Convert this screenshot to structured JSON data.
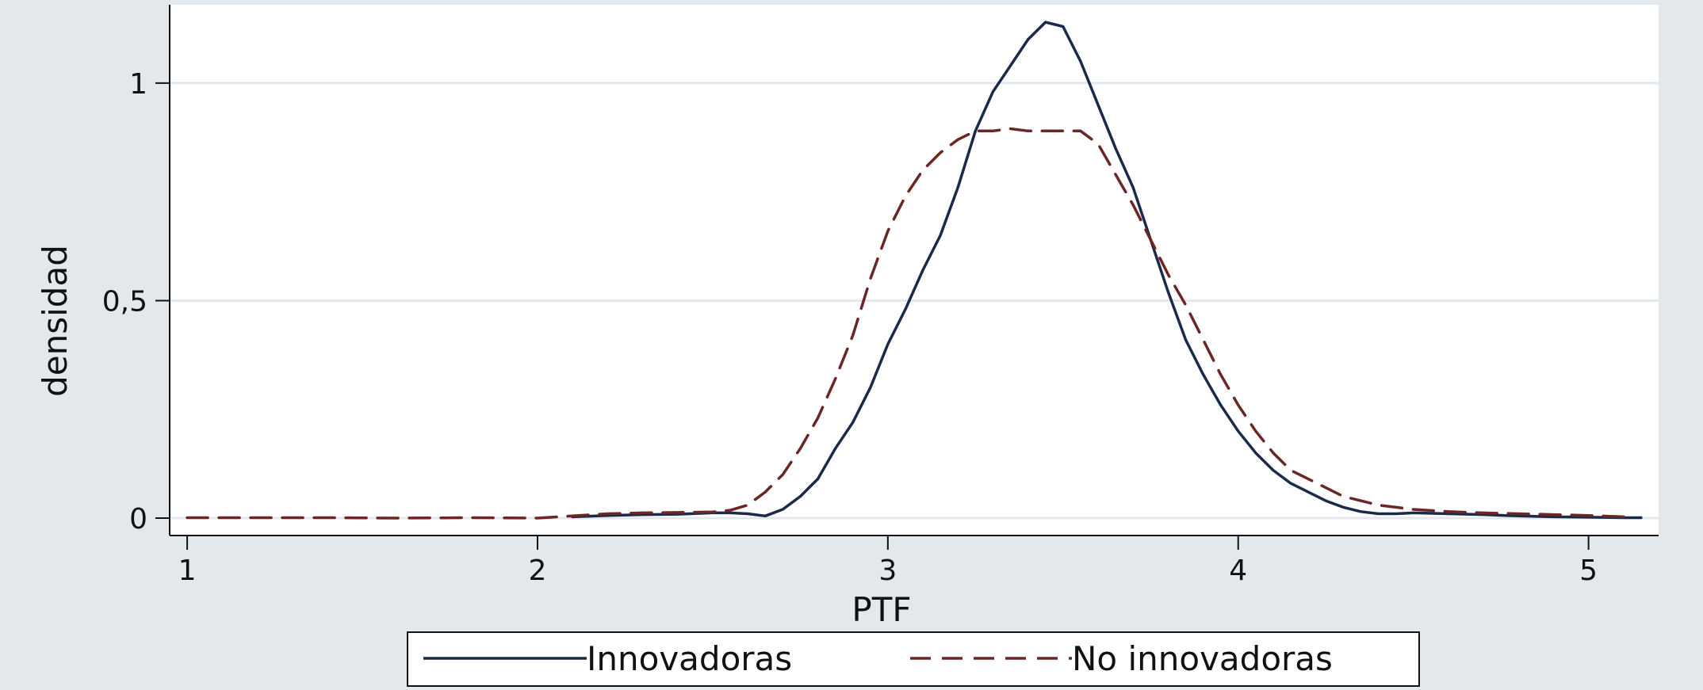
{
  "chart_data": {
    "type": "line",
    "xlabel": "PTF",
    "ylabel": "densidad",
    "xlim": [
      0.95,
      5.2
    ],
    "ylim": [
      -0.04,
      1.18
    ],
    "xticks": [
      1,
      2,
      3,
      4,
      5
    ],
    "xtick_labels": [
      "1",
      "2",
      "3",
      "4",
      "5"
    ],
    "yticks": [
      0,
      0.5,
      1
    ],
    "ytick_labels": [
      "0",
      "0,5",
      "1"
    ],
    "grid": true,
    "legend_position": "bottom",
    "colors": {
      "innovadoras": "#1a2a48",
      "no_innovadoras": "#6b2626",
      "plot_background": "#ffffff",
      "outer_background": "#e3e8ec",
      "grid": "#e3e8ec"
    },
    "series": [
      {
        "name": "Innovadoras",
        "style": "solid",
        "x": [
          2.1,
          2.2,
          2.3,
          2.4,
          2.5,
          2.55,
          2.6,
          2.65,
          2.7,
          2.75,
          2.8,
          2.85,
          2.9,
          2.95,
          3.0,
          3.05,
          3.1,
          3.15,
          3.2,
          3.25,
          3.3,
          3.35,
          3.4,
          3.45,
          3.5,
          3.55,
          3.6,
          3.65,
          3.7,
          3.75,
          3.8,
          3.85,
          3.9,
          3.95,
          4.0,
          4.05,
          4.1,
          4.15,
          4.2,
          4.25,
          4.3,
          4.35,
          4.4,
          4.45,
          4.5,
          4.6,
          4.7,
          4.8,
          4.9,
          5.0,
          5.1,
          5.15
        ],
        "y": [
          0.003,
          0.006,
          0.008,
          0.009,
          0.012,
          0.012,
          0.01,
          0.005,
          0.02,
          0.05,
          0.09,
          0.16,
          0.22,
          0.3,
          0.4,
          0.48,
          0.57,
          0.65,
          0.76,
          0.89,
          0.98,
          1.04,
          1.1,
          1.14,
          1.13,
          1.05,
          0.95,
          0.85,
          0.76,
          0.64,
          0.52,
          0.41,
          0.33,
          0.26,
          0.2,
          0.15,
          0.11,
          0.08,
          0.06,
          0.04,
          0.025,
          0.015,
          0.01,
          0.01,
          0.012,
          0.01,
          0.008,
          0.005,
          0.003,
          0.002,
          0.001,
          0.001
        ]
      },
      {
        "name": "No innovadoras",
        "style": "dashed",
        "x": [
          1.0,
          1.2,
          1.4,
          1.6,
          1.8,
          2.0,
          2.2,
          2.3,
          2.4,
          2.5,
          2.55,
          2.6,
          2.65,
          2.7,
          2.75,
          2.8,
          2.85,
          2.9,
          2.95,
          3.0,
          3.05,
          3.1,
          3.15,
          3.2,
          3.25,
          3.3,
          3.35,
          3.4,
          3.45,
          3.5,
          3.55,
          3.6,
          3.65,
          3.7,
          3.75,
          3.8,
          3.85,
          3.9,
          3.95,
          4.0,
          4.05,
          4.1,
          4.15,
          4.2,
          4.25,
          4.3,
          4.35,
          4.4,
          4.5,
          4.6,
          4.7,
          4.8,
          4.9,
          5.0,
          5.1
        ],
        "y": [
          0.001,
          0.001,
          0.001,
          0.0,
          0.001,
          0.0,
          0.01,
          0.012,
          0.013,
          0.014,
          0.018,
          0.03,
          0.06,
          0.1,
          0.16,
          0.23,
          0.32,
          0.42,
          0.55,
          0.66,
          0.74,
          0.8,
          0.84,
          0.87,
          0.89,
          0.89,
          0.895,
          0.89,
          0.89,
          0.89,
          0.89,
          0.86,
          0.79,
          0.72,
          0.64,
          0.56,
          0.49,
          0.41,
          0.33,
          0.26,
          0.2,
          0.15,
          0.11,
          0.09,
          0.07,
          0.05,
          0.04,
          0.03,
          0.02,
          0.015,
          0.012,
          0.01,
          0.008,
          0.006,
          0.003
        ]
      }
    ]
  }
}
